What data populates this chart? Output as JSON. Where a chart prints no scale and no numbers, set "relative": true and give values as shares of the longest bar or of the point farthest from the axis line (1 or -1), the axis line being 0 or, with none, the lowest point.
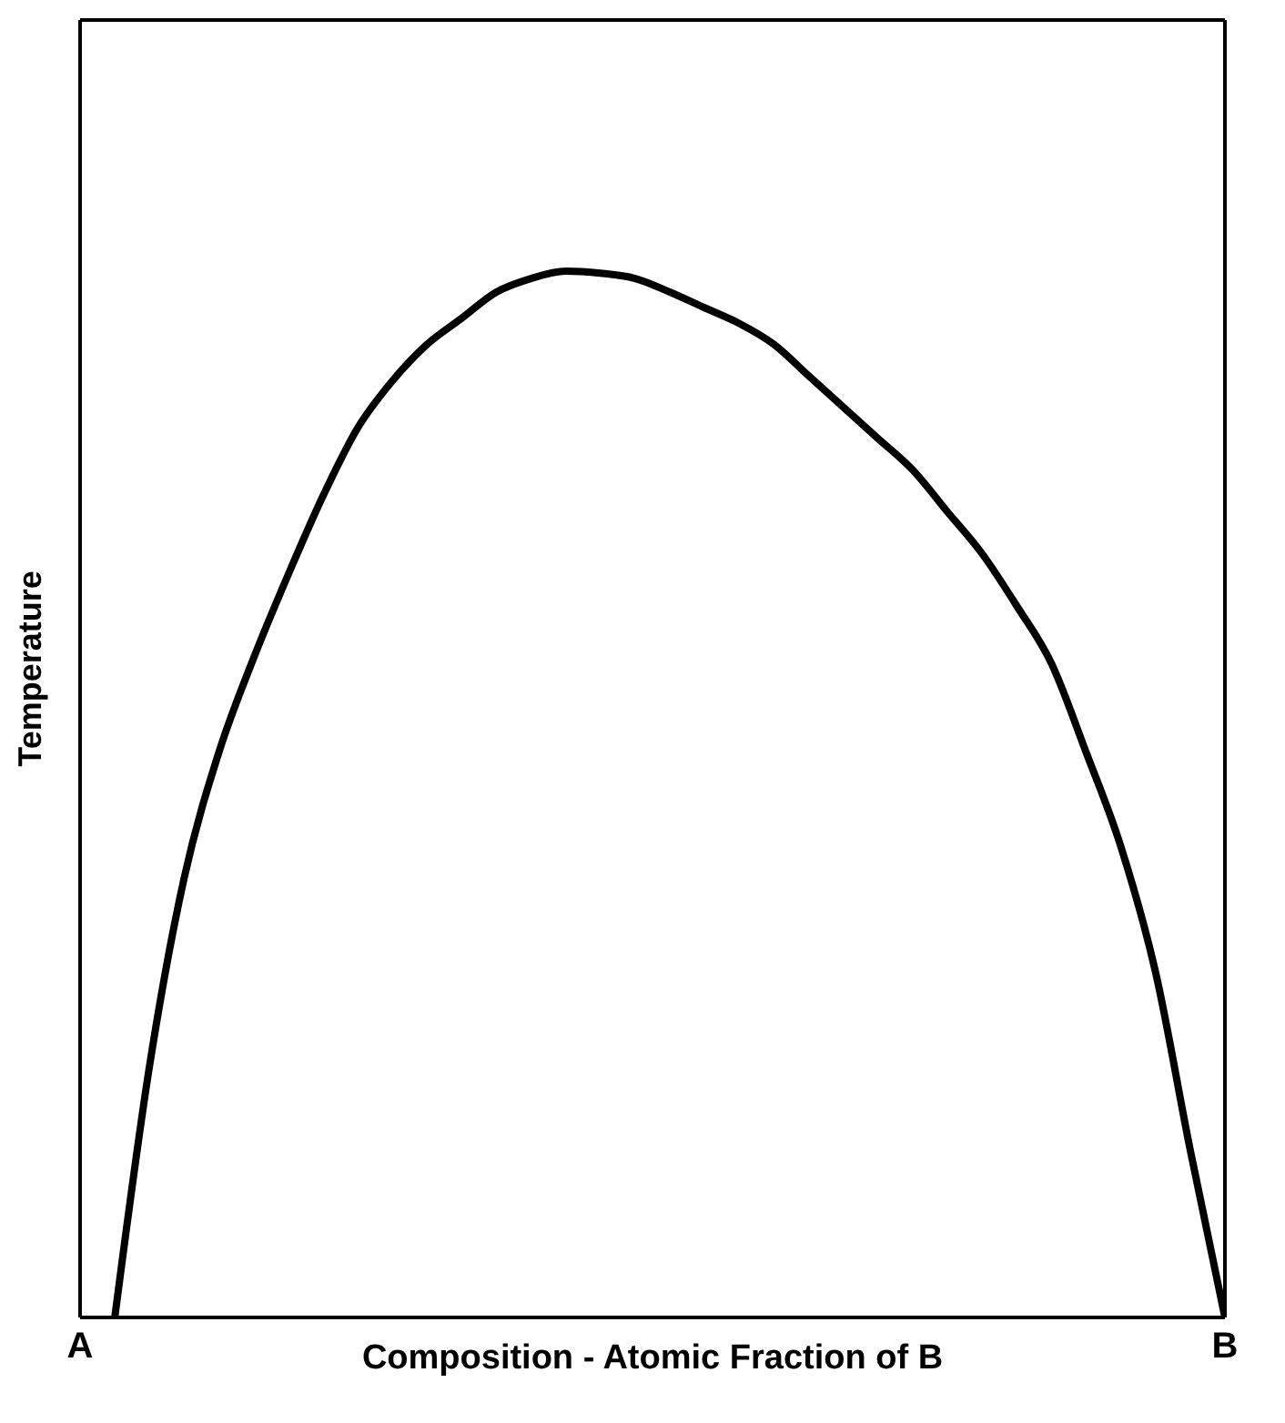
{
  "chart_data": {
    "type": "line",
    "relative": true,
    "xlabel": "Composition - Atomic Fraction of B",
    "ylabel": "Temperature",
    "tick_labels": "x",
    "marker": "none",
    "line_style": "solid",
    "categories": [
      "A",
      null,
      null,
      null,
      null,
      null,
      null,
      null,
      null,
      null,
      null,
      null,
      null,
      null,
      null,
      null,
      null,
      null,
      null,
      null,
      null,
      null,
      null,
      null,
      null,
      null,
      null,
      null,
      null,
      null,
      null,
      null,
      null,
      "B"
    ],
    "series": [
      {
        "color": "#000000",
        "values": [
          null,
          0,
          0.24,
          0.42,
          0.54,
          0.63,
          0.71,
          0.785,
          0.85,
          0.895,
          0.93,
          0.955,
          0.98,
          0.993,
          1,
          0.998,
          0.993,
          0.98,
          0.965,
          0.95,
          0.93,
          0.9,
          0.87,
          0.84,
          0.81,
          0.77,
          0.73,
          0.68,
          0.625,
          0.54,
          0.45,
          0.33,
          0.16,
          0
        ]
      }
    ]
  }
}
